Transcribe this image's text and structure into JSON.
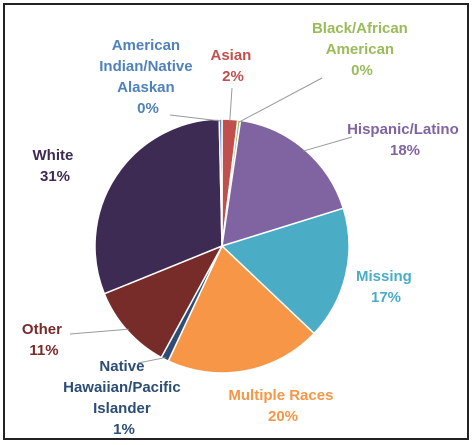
{
  "chart_data": {
    "type": "pie",
    "unit": "%",
    "slices": [
      {
        "label": "Asian",
        "value": 2,
        "display": "2%",
        "color": "#C0504D"
      },
      {
        "label": "Black/African American",
        "value": 0,
        "display": "0%",
        "color": "#9BBB59"
      },
      {
        "label": "Hispanic/Latino",
        "value": 18,
        "display": "18%",
        "color": "#8064A2"
      },
      {
        "label": "Missing",
        "value": 17,
        "display": "17%",
        "color": "#4BACC6"
      },
      {
        "label": "Multiple Races",
        "value": 20,
        "display": "20%",
        "color": "#F79646"
      },
      {
        "label": "Native Hawaiian/Pacific Islander",
        "value": 1,
        "display": "1%",
        "color": "#2C4D75"
      },
      {
        "label": "Other",
        "value": 11,
        "display": "11%",
        "color": "#772C2A"
      },
      {
        "label": "White",
        "value": 31,
        "display": "31%",
        "color": "#3E2B54"
      },
      {
        "label": "American Indian/Native Alaskan",
        "value": 0,
        "display": "0%",
        "color": "#4F81BD"
      }
    ]
  }
}
